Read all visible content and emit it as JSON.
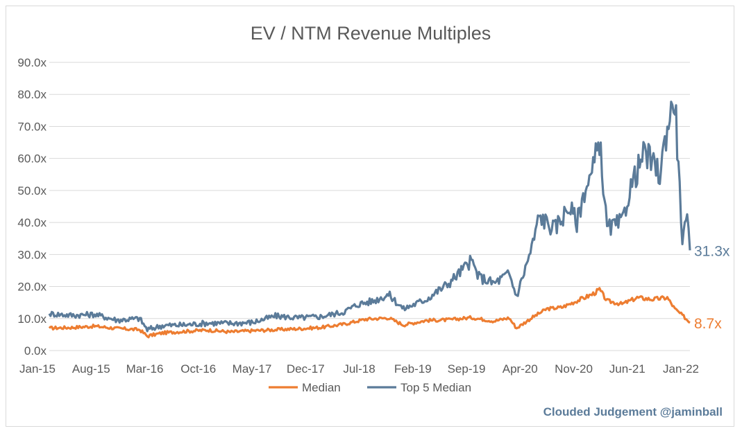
{
  "chart_data": {
    "type": "line",
    "title": "EV / NTM Revenue Multiples",
    "xlabel": "",
    "ylabel": "",
    "ylim": [
      0,
      90
    ],
    "y_ticks": [
      "0.0x",
      "10.0x",
      "20.0x",
      "30.0x",
      "40.0x",
      "50.0x",
      "60.0x",
      "70.0x",
      "80.0x",
      "90.0x"
    ],
    "x_ticks": [
      "Jan-15",
      "Aug-15",
      "Mar-16",
      "Oct-16",
      "May-17",
      "Dec-17",
      "Jul-18",
      "Feb-19",
      "Sep-19",
      "Apr-20",
      "Nov-20",
      "Jun-21",
      "Jan-22"
    ],
    "x_range": [
      "2015-01",
      "2022-02"
    ],
    "grid": true,
    "legend_position": "bottom",
    "series": [
      {
        "name": "Median",
        "color": "#ed7d31",
        "end_label": "8.7x",
        "points": [
          [
            "2015-01",
            7.0
          ],
          [
            "2015-04",
            7.2
          ],
          [
            "2015-07",
            7.6
          ],
          [
            "2015-10",
            6.9
          ],
          [
            "2016-01",
            6.5
          ],
          [
            "2016-02",
            4.5
          ],
          [
            "2016-04",
            5.5
          ],
          [
            "2016-07",
            6.0
          ],
          [
            "2016-10",
            6.4
          ],
          [
            "2017-01",
            5.8
          ],
          [
            "2017-04",
            6.2
          ],
          [
            "2017-07",
            6.5
          ],
          [
            "2017-10",
            6.8
          ],
          [
            "2018-01",
            7.2
          ],
          [
            "2018-04",
            8.2
          ],
          [
            "2018-07",
            9.8
          ],
          [
            "2018-10",
            10.2
          ],
          [
            "2018-12",
            8.0
          ],
          [
            "2019-03",
            9.4
          ],
          [
            "2019-06",
            9.6
          ],
          [
            "2019-09",
            10.3
          ],
          [
            "2019-12",
            9.2
          ],
          [
            "2020-02",
            10.2
          ],
          [
            "2020-03",
            7.0
          ],
          [
            "2020-05",
            10.2
          ],
          [
            "2020-07",
            13.0
          ],
          [
            "2020-09",
            13.5
          ],
          [
            "2020-11",
            15.5
          ],
          [
            "2021-01",
            17.5
          ],
          [
            "2021-02",
            19.0
          ],
          [
            "2021-03",
            15.5
          ],
          [
            "2021-05",
            14.5
          ],
          [
            "2021-07",
            16.5
          ],
          [
            "2021-09",
            16.0
          ],
          [
            "2021-11",
            16.5
          ],
          [
            "2021-12",
            13.0
          ],
          [
            "2022-01",
            11.0
          ],
          [
            "2022-02",
            8.7
          ]
        ]
      },
      {
        "name": "Top 5 Median",
        "color": "#5b7b99",
        "end_label": "31.3x",
        "points": [
          [
            "2015-01",
            11.5
          ],
          [
            "2015-04",
            11.0
          ],
          [
            "2015-07",
            11.3
          ],
          [
            "2015-10",
            9.5
          ],
          [
            "2016-01",
            10.0
          ],
          [
            "2016-02",
            6.5
          ],
          [
            "2016-04",
            7.8
          ],
          [
            "2016-07",
            8.0
          ],
          [
            "2016-10",
            8.6
          ],
          [
            "2017-01",
            8.5
          ],
          [
            "2017-04",
            8.8
          ],
          [
            "2017-07",
            10.8
          ],
          [
            "2017-10",
            10.2
          ],
          [
            "2018-01",
            10.6
          ],
          [
            "2018-04",
            12.0
          ],
          [
            "2018-06",
            14.5
          ],
          [
            "2018-08",
            15.5
          ],
          [
            "2018-10",
            17.5
          ],
          [
            "2018-12",
            13.0
          ],
          [
            "2019-03",
            16.0
          ],
          [
            "2019-06",
            21.0
          ],
          [
            "2019-09",
            28.0
          ],
          [
            "2019-10",
            23.0
          ],
          [
            "2019-12",
            21.0
          ],
          [
            "2020-02",
            24.0
          ],
          [
            "2020-03",
            17.0
          ],
          [
            "2020-05",
            32.0
          ],
          [
            "2020-06",
            42.0
          ],
          [
            "2020-08",
            38.0
          ],
          [
            "2020-10",
            45.0
          ],
          [
            "2020-11",
            40.0
          ],
          [
            "2020-12",
            50.0
          ],
          [
            "2021-01",
            55.0
          ],
          [
            "2021-02",
            66.0
          ],
          [
            "2021-03",
            38.0
          ],
          [
            "2021-05",
            40.0
          ],
          [
            "2021-06",
            50.0
          ],
          [
            "2021-08",
            62.0
          ],
          [
            "2021-10",
            55.0
          ],
          [
            "2021-11",
            70.0
          ],
          [
            "2021-12",
            79.0
          ],
          [
            "2021-12-20",
            50.0
          ],
          [
            "2022-01",
            35.0
          ],
          [
            "2022-01-20",
            40.0
          ],
          [
            "2022-02",
            31.3
          ]
        ]
      }
    ]
  },
  "watermark": "Clouded Judgement @jaminball"
}
